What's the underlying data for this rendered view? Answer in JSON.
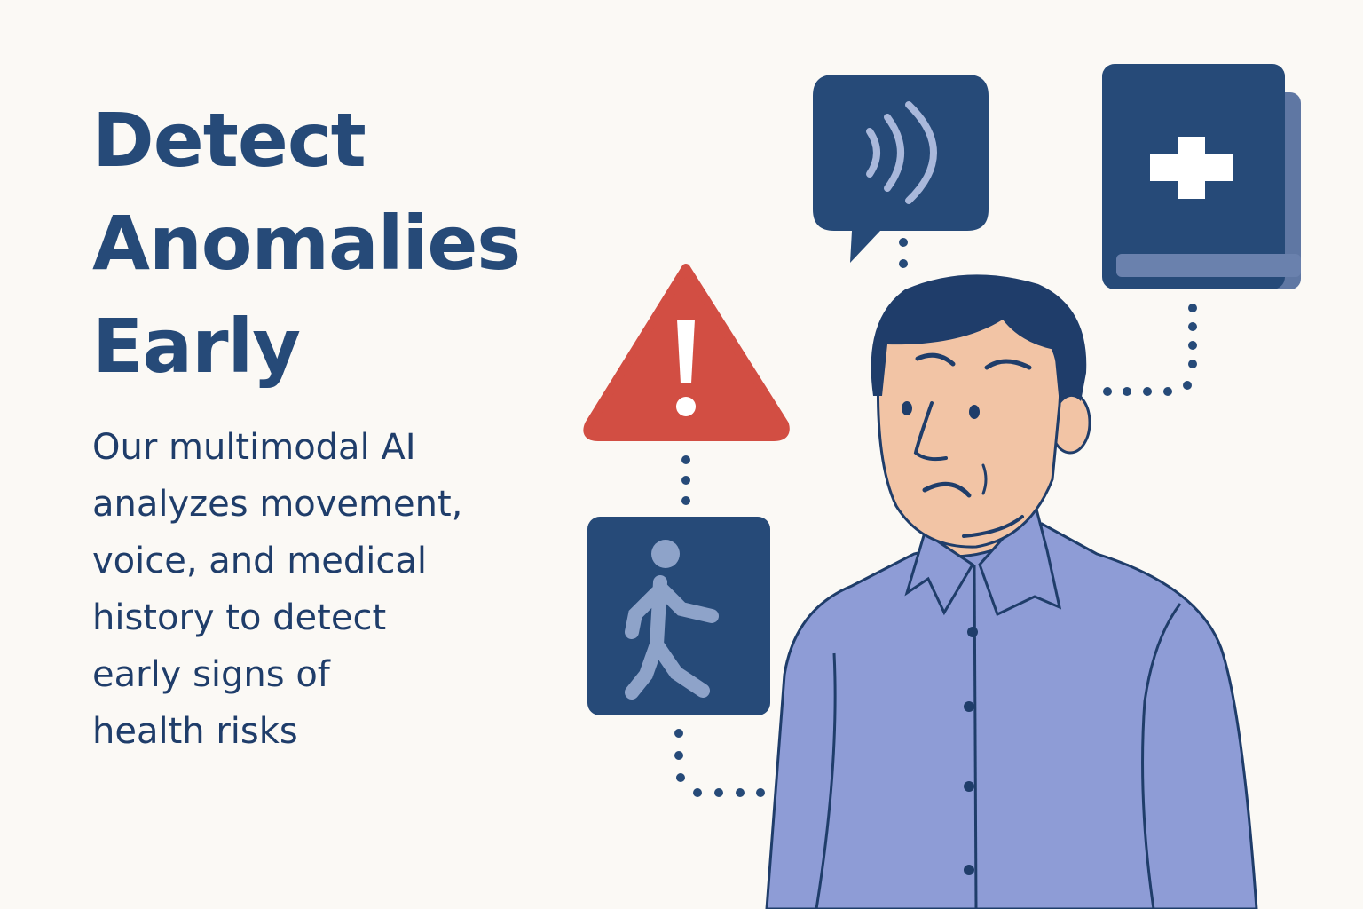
{
  "headline": {
    "lines": [
      "Detect",
      "Anomalies",
      "Early"
    ]
  },
  "body": {
    "lines": [
      "Our multimodal AI",
      "analyzes movement,",
      "voice, and medical",
      "history to detect",
      "early signs of",
      "health risks"
    ]
  },
  "icons": {
    "voice": "voice-speech-bubble-icon",
    "medical": "medical-record-book-icon",
    "warning": "warning-triangle-icon",
    "movement": "walking-person-icon"
  },
  "colors": {
    "background": "#fbf9f5",
    "navy": "#264a78",
    "dark_navy": "#1f3d6a",
    "alert_red": "#d24e43",
    "shirt": "#8e9cd6",
    "skin": "#f2c4a5",
    "hair": "#1f3d6a"
  }
}
